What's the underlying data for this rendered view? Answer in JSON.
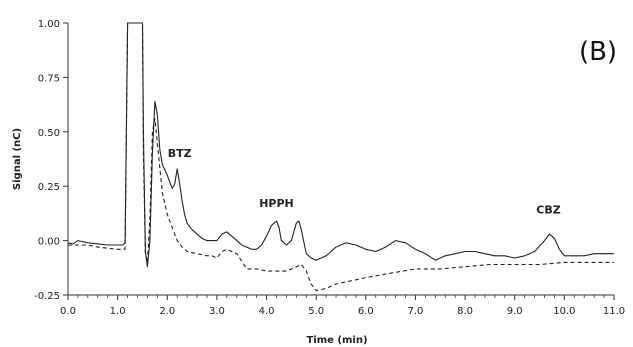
{
  "chart_data": {
    "type": "line",
    "title": "",
    "panel_label": "(B)",
    "xlabel": "Time (min)",
    "ylabel": "Signal (nC)",
    "xlim": [
      0.0,
      11.0
    ],
    "ylim": [
      -0.25,
      1.0
    ],
    "x_ticks": [
      "0.0",
      "1.0",
      "2.0",
      "3.0",
      "4.0",
      "5.0",
      "6.0",
      "7.0",
      "8.0",
      "9.0",
      "10.0",
      "11.0"
    ],
    "y_ticks": [
      "1.00",
      "0.75",
      "0.50",
      "0.25",
      "0.00",
      "-0.25"
    ],
    "grid": false,
    "annotations": [
      {
        "text": "BTZ",
        "x": 2.25,
        "y": 0.32
      },
      {
        "text": "HPPH",
        "x": 4.2,
        "y": 0.09
      },
      {
        "text": "CBZ",
        "x": 9.68,
        "y": 0.06
      }
    ],
    "series": [
      {
        "style": "solid",
        "color": "#222222",
        "x": [
          0.0,
          0.1,
          0.2,
          0.4,
          0.6,
          0.8,
          1.0,
          1.1,
          1.15,
          1.2,
          1.25,
          1.5,
          1.52,
          1.56,
          1.6,
          1.65,
          1.7,
          1.75,
          1.8,
          1.85,
          1.9,
          2.0,
          2.1,
          2.15,
          2.2,
          2.25,
          2.3,
          2.35,
          2.4,
          2.5,
          2.6,
          2.7,
          2.8,
          2.9,
          3.0,
          3.1,
          3.2,
          3.3,
          3.4,
          3.5,
          3.6,
          3.7,
          3.8,
          3.9,
          4.0,
          4.1,
          4.2,
          4.25,
          4.3,
          4.4,
          4.5,
          4.6,
          4.65,
          4.7,
          4.8,
          4.9,
          5.0,
          5.2,
          5.4,
          5.6,
          5.8,
          6.0,
          6.2,
          6.4,
          6.6,
          6.8,
          7.0,
          7.2,
          7.4,
          7.6,
          7.8,
          8.0,
          8.2,
          8.4,
          8.6,
          8.8,
          9.0,
          9.2,
          9.4,
          9.6,
          9.7,
          9.8,
          9.9,
          10.0,
          10.2,
          10.4,
          10.6,
          10.8,
          11.0
        ],
        "y": [
          -0.01,
          -0.015,
          0.0,
          -0.01,
          -0.015,
          -0.02,
          -0.02,
          -0.02,
          -0.01,
          1.0,
          1.0,
          1.0,
          0.5,
          -0.05,
          -0.12,
          0.0,
          0.4,
          0.64,
          0.58,
          0.42,
          0.35,
          0.3,
          0.24,
          0.26,
          0.33,
          0.26,
          0.18,
          0.12,
          0.08,
          0.05,
          0.03,
          0.01,
          0.0,
          0.0,
          0.0,
          0.03,
          0.04,
          0.02,
          0.0,
          -0.02,
          -0.03,
          -0.04,
          -0.04,
          -0.02,
          0.02,
          0.07,
          0.09,
          0.06,
          0.0,
          -0.02,
          0.0,
          0.08,
          0.09,
          0.05,
          -0.06,
          -0.08,
          -0.09,
          -0.07,
          -0.03,
          -0.01,
          -0.02,
          -0.04,
          -0.05,
          -0.03,
          0.0,
          -0.01,
          -0.04,
          -0.06,
          -0.09,
          -0.07,
          -0.06,
          -0.05,
          -0.05,
          -0.06,
          -0.07,
          -0.07,
          -0.08,
          -0.07,
          -0.05,
          0.0,
          0.03,
          0.01,
          -0.04,
          -0.07,
          -0.07,
          -0.07,
          -0.06,
          -0.06,
          -0.06
        ]
      },
      {
        "style": "dashed",
        "color": "#222222",
        "x": [
          0.0,
          0.2,
          0.4,
          0.6,
          0.8,
          1.0,
          1.1,
          1.15,
          1.2,
          1.25,
          1.5,
          1.52,
          1.56,
          1.6,
          1.65,
          1.7,
          1.75,
          1.8,
          1.9,
          2.0,
          2.1,
          2.2,
          2.3,
          2.4,
          2.6,
          2.8,
          2.9,
          3.0,
          3.1,
          3.2,
          3.4,
          3.6,
          3.8,
          4.0,
          4.2,
          4.4,
          4.5,
          4.6,
          4.7,
          4.8,
          4.9,
          5.0,
          5.2,
          5.4,
          5.6,
          5.8,
          6.0,
          6.5,
          7.0,
          7.5,
          8.0,
          8.5,
          9.0,
          9.5,
          10.0,
          10.5,
          11.0
        ],
        "y": [
          -0.02,
          -0.02,
          -0.02,
          -0.03,
          -0.035,
          -0.04,
          -0.04,
          -0.04,
          1.0,
          1.0,
          1.0,
          0.4,
          -0.06,
          -0.1,
          0.1,
          0.5,
          0.56,
          0.45,
          0.22,
          0.12,
          0.06,
          0.0,
          -0.03,
          -0.05,
          -0.06,
          -0.07,
          -0.07,
          -0.08,
          -0.05,
          -0.04,
          -0.06,
          -0.13,
          -0.13,
          -0.14,
          -0.14,
          -0.14,
          -0.13,
          -0.12,
          -0.11,
          -0.14,
          -0.2,
          -0.23,
          -0.22,
          -0.2,
          -0.19,
          -0.18,
          -0.17,
          -0.15,
          -0.13,
          -0.13,
          -0.12,
          -0.11,
          -0.11,
          -0.11,
          -0.1,
          -0.1,
          -0.1
        ]
      }
    ]
  }
}
